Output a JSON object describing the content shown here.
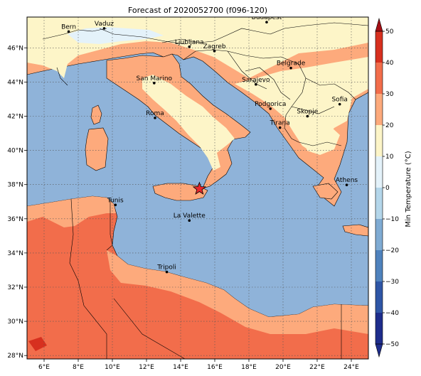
{
  "title": "Forecast of 2020052700 (f096-120)",
  "colors": {
    "sea": "#8fb3d9",
    "band_0_10": "#fdf5c8",
    "band_10_20": "#fdaa7c",
    "band_20_30": "#f26d4b",
    "band_30_40": "#d7301f",
    "band_m10_0": "#e4f2fa",
    "border": "#000000",
    "star": "#e8262a"
  },
  "map_axes": {
    "lon_range": [
      5,
      25
    ],
    "lat_range": [
      27.8,
      47.8
    ],
    "lon_ticks": [
      6,
      8,
      10,
      12,
      14,
      16,
      18,
      20,
      22,
      24
    ],
    "lon_labels": [
      "6°E",
      "8°E",
      "10°E",
      "12°E",
      "14°E",
      "16°E",
      "18°E",
      "20°E",
      "22°E",
      "24°E"
    ],
    "lat_ticks": [
      28,
      30,
      32,
      34,
      36,
      38,
      40,
      42,
      44,
      46
    ],
    "lat_labels": [
      "28°N",
      "30°N",
      "32°N",
      "34°N",
      "36°N",
      "38°N",
      "40°N",
      "42°N",
      "44°N",
      "46°N"
    ],
    "grid": true
  },
  "cities": [
    {
      "name": "Bern",
      "lon": 7.44,
      "lat": 46.95
    },
    {
      "name": "Vaduz",
      "lon": 9.52,
      "lat": 47.14
    },
    {
      "name": "Budapest",
      "lon": 19.04,
      "lat": 47.5
    },
    {
      "name": "Ljubljana",
      "lon": 14.51,
      "lat": 46.06
    },
    {
      "name": "Zagreb",
      "lon": 15.98,
      "lat": 45.81
    },
    {
      "name": "Belgrade",
      "lon": 20.46,
      "lat": 44.82
    },
    {
      "name": "San Marino",
      "lon": 12.45,
      "lat": 43.94
    },
    {
      "name": "Sarajevo",
      "lon": 18.41,
      "lat": 43.86
    },
    {
      "name": "Sofia",
      "lon": 23.32,
      "lat": 42.7
    },
    {
      "name": "Podgorica",
      "lon": 19.26,
      "lat": 42.44
    },
    {
      "name": "Skopje",
      "lon": 21.43,
      "lat": 42.0
    },
    {
      "name": "Roma",
      "lon": 12.5,
      "lat": 41.9
    },
    {
      "name": "Tirana",
      "lon": 19.82,
      "lat": 41.33
    },
    {
      "name": "Athens",
      "lon": 23.73,
      "lat": 37.98
    },
    {
      "name": "Tunis",
      "lon": 10.18,
      "lat": 36.81
    },
    {
      "name": "La Valette",
      "lon": 14.51,
      "lat": 35.9
    },
    {
      "name": "Tripoli",
      "lon": 13.19,
      "lat": 32.89
    }
  ],
  "marker": {
    "lon": 15.1,
    "lat": 37.75,
    "shape": "star"
  },
  "colorbar": {
    "label": "Min Temperature (°C)",
    "range": [
      -50,
      50
    ],
    "ticks": [
      -50,
      -40,
      -30,
      -20,
      -10,
      0,
      10,
      20,
      30,
      40,
      50
    ],
    "tick_labels": [
      "−50",
      "−40",
      "−30",
      "−20",
      "−10",
      "0",
      "10",
      "20",
      "30",
      "40",
      "50"
    ],
    "band_colors": [
      "#1e2d8c",
      "#2f56a6",
      "#4f82bd",
      "#7fabd3",
      "#b4d6ea",
      "#e4f2fa",
      "#fdf5c8",
      "#fdaa7c",
      "#f26d4b",
      "#d7301f",
      "#a50f15"
    ],
    "extend": "both"
  }
}
